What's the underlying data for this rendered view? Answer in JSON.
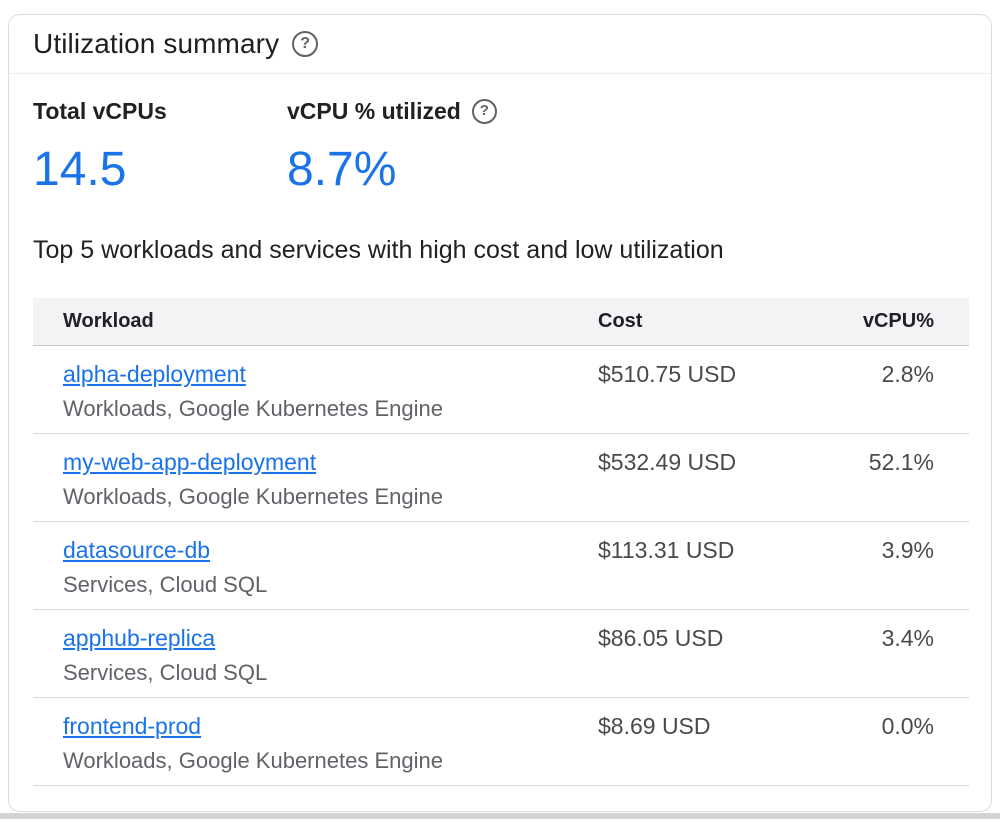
{
  "card": {
    "title": "Utilization summary"
  },
  "icons": {
    "help_glyph": "?"
  },
  "stats": [
    {
      "label": "Total vCPUs",
      "value": "14.5"
    },
    {
      "label": "vCPU % utilized",
      "value": "8.7%"
    }
  ],
  "section": {
    "caption": "Top 5 workloads and services with high cost and low utilization"
  },
  "table": {
    "columns": [
      "Workload",
      "Cost",
      "vCPU%"
    ],
    "rows": [
      {
        "workload": "alpha-deployment",
        "source": "Workloads, Google Kubernetes Engine",
        "cost": "$510.75 USD",
        "vcpu": "2.8%"
      },
      {
        "workload": "my-web-app-deployment",
        "source": "Workloads, Google Kubernetes Engine",
        "cost": "$532.49 USD",
        "vcpu": "52.1%"
      },
      {
        "workload": "datasource-db",
        "source": "Services, Cloud SQL",
        "cost": "$113.31 USD",
        "vcpu": "3.9%"
      },
      {
        "workload": "apphub-replica",
        "source": "Services, Cloud SQL",
        "cost": "$86.05 USD",
        "vcpu": "3.4%"
      },
      {
        "workload": "frontend-prod",
        "source": "Workloads, Google Kubernetes Engine",
        "cost": "$8.69 USD",
        "vcpu": "0.0%"
      }
    ]
  },
  "colors": {
    "accent_blue": "#1a73e8",
    "text_primary": "#202124",
    "text_secondary": "#5f6368",
    "card_border": "#dadce0",
    "table_header_bg": "#f1f3f4"
  }
}
